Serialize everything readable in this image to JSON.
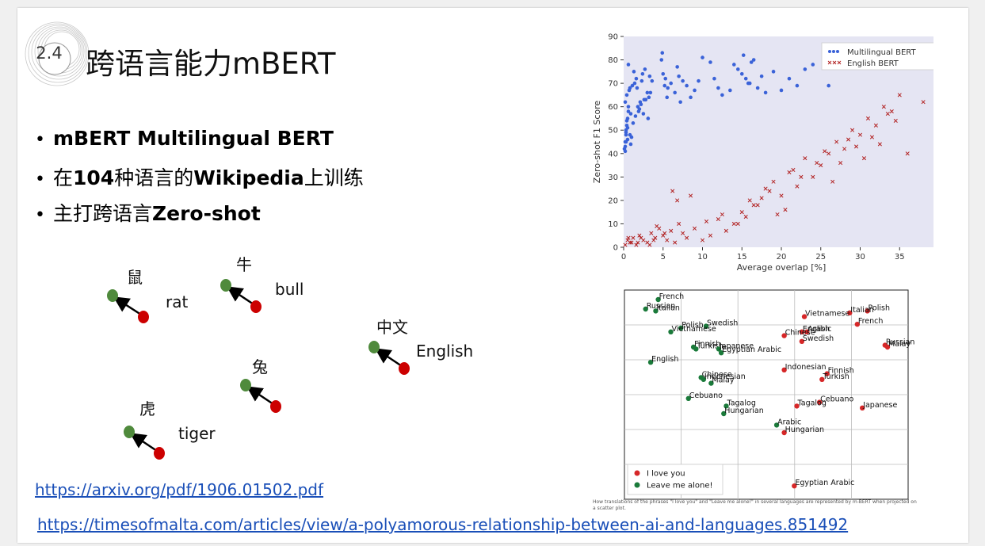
{
  "slide": {
    "section_number": "2.4",
    "title": "跨语言能力mBERT",
    "bullets": [
      {
        "bold_before": "mBERT Multilingual BERT",
        "text": "",
        "bold_after": ""
      },
      {
        "text_before": "在",
        "bold1": "104",
        "mid": "种语言的",
        "bold2": "Wikipedia",
        "after": "上训练"
      },
      {
        "text_before": "主打跨语言",
        "bold": "Zero-shot"
      }
    ],
    "links": [
      "https://arxiv.org/pdf/1906.01502.pdf",
      "https://timesofmalta.com/articles/view/a-polyamorous-relationship-between-ai-and-languages.851492"
    ]
  },
  "word_pairs": [
    {
      "zh": "鼠",
      "en": "rat"
    },
    {
      "zh": "牛",
      "en": "bull"
    },
    {
      "zh": "中文",
      "en": "English"
    },
    {
      "zh": "兔",
      "en": ""
    },
    {
      "zh": "虎",
      "en": "tiger"
    }
  ],
  "colors": {
    "green": "#4f8a3c",
    "red": "#cc0000",
    "blue": "#3a62d8",
    "xred": "#b22222",
    "chart_bg": "#e5e5f3"
  },
  "chart_data": [
    {
      "type": "scatter",
      "xlabel": "Average overlap [%]",
      "ylabel": "Zero-shot F1 Score",
      "xlim": [
        0,
        40
      ],
      "ylim": [
        0,
        90
      ],
      "xticks": [
        0,
        5,
        10,
        15,
        20,
        25,
        30,
        35,
        40
      ],
      "yticks": [
        0,
        10,
        20,
        30,
        40,
        50,
        60,
        70,
        80,
        90
      ],
      "legend": "top-right",
      "series": [
        {
          "name": "Multilingual BERT",
          "marker": "dot",
          "color": "#3a62d8",
          "x": [
            0.1,
            0.2,
            0.3,
            0.4,
            0.5,
            0.6,
            0.2,
            0.4,
            0.8,
            0.3,
            0.5,
            0.9,
            1.0,
            1.2,
            1.5,
            1.8,
            2.0,
            2.2,
            2.5,
            2.8,
            3.0,
            3.2,
            1.4,
            1.6,
            2.4,
            2.7,
            3.3,
            3.6,
            0.6,
            0.7,
            1.1,
            1.3,
            0.2,
            0.3,
            0.5,
            4.8,
            5.0,
            5.3,
            5.6,
            6.0,
            6.5,
            7.0,
            7.5,
            8.0,
            8.5,
            9.0,
            10.0,
            11.0,
            11.5,
            12.0,
            12.5,
            14.0,
            14.5,
            15.0,
            15.5,
            16.0,
            16.5,
            17.0,
            18.0,
            19.0,
            20.0,
            21.0,
            22.0,
            23.0,
            24.0,
            26.0,
            0.4,
            0.9,
            2.1,
            3.1,
            5.2,
            6.8,
            15.2,
            16.2,
            0.3,
            0.6,
            1.7,
            2.3,
            4.9,
            5.5,
            7.2,
            9.5,
            13.5,
            15.8,
            17.5,
            0.2,
            0.8,
            1.9,
            2.6,
            3.4
          ],
          "y": [
            42,
            45,
            48,
            52,
            55,
            58,
            62,
            65,
            68,
            50,
            46,
            44,
            47,
            53,
            56,
            60,
            59,
            61,
            57,
            63,
            66,
            64,
            70,
            72,
            74,
            76,
            73,
            71,
            78,
            67,
            69,
            75,
            43,
            49,
            51,
            80,
            74,
            72,
            68,
            70,
            66,
            73,
            71,
            69,
            64,
            67,
            81,
            79,
            72,
            68,
            65,
            78,
            76,
            74,
            72,
            70,
            80,
            68,
            66,
            75,
            67,
            72,
            69,
            76,
            78,
            69,
            54,
            57,
            62,
            55,
            69,
            77,
            82,
            79,
            45,
            60,
            68,
            71,
            83,
            64,
            62,
            71,
            67,
            70,
            73,
            41,
            48,
            58,
            63,
            66
          ]
        },
        {
          "name": "English BERT",
          "marker": "x",
          "color": "#b22222",
          "x": [
            0.2,
            0.5,
            0.8,
            1.2,
            1.6,
            2.0,
            2.5,
            3.0,
            3.5,
            4.0,
            4.5,
            5.0,
            5.5,
            6.0,
            6.5,
            7.0,
            7.5,
            8.0,
            9.0,
            10.0,
            11.0,
            12.0,
            13.0,
            14.0,
            15.0,
            16.0,
            17.0,
            18.0,
            19.0,
            20.0,
            21.0,
            22.0,
            23.0,
            24.0,
            25.0,
            26.0,
            27.0,
            28.0,
            29.0,
            30.0,
            31.0,
            32.0,
            33.0,
            34.0,
            35.0,
            38.0,
            1.0,
            2.2,
            3.8,
            5.2,
            6.8,
            8.5,
            10.5,
            12.5,
            14.5,
            16.5,
            18.5,
            20.5,
            22.5,
            24.5,
            26.5,
            28.5,
            30.5,
            32.5,
            34.5,
            4.2,
            6.2,
            3.3,
            1.8,
            0.6,
            15.5,
            17.5,
            19.5,
            21.5,
            25.5,
            27.5,
            29.5,
            31.5,
            33.5,
            36.0
          ],
          "y": [
            1,
            3,
            2,
            4,
            1,
            5,
            3,
            2,
            6,
            4,
            8,
            5,
            3,
            7,
            2,
            10,
            6,
            4,
            8,
            3,
            5,
            12,
            7,
            10,
            15,
            20,
            18,
            25,
            28,
            22,
            32,
            26,
            38,
            30,
            35,
            40,
            45,
            42,
            50,
            48,
            55,
            52,
            60,
            58,
            65,
            62,
            2,
            4,
            3,
            6,
            20,
            22,
            11,
            14,
            10,
            18,
            24,
            16,
            30,
            36,
            28,
            46,
            38,
            44,
            54,
            9,
            24,
            1,
            2,
            4,
            13,
            21,
            14,
            33,
            41,
            36,
            43,
            47,
            57,
            40
          ]
        }
      ]
    },
    {
      "type": "scatter",
      "xlabel": "",
      "ylabel": "",
      "legend": "bottom-left",
      "grid": true,
      "series": [
        {
          "name": "I love you",
          "color": "#d62728",
          "points": [
            {
              "label": "Polish",
              "x": 0.92,
              "y": 0.94
            },
            {
              "label": "Italian",
              "x": 0.85,
              "y": 0.93
            },
            {
              "label": "Vietnamese",
              "x": 0.67,
              "y": 0.91
            },
            {
              "label": "French",
              "x": 0.88,
              "y": 0.87
            },
            {
              "label": "English",
              "x": 0.66,
              "y": 0.83
            },
            {
              "label": "Arabic",
              "x": 0.68,
              "y": 0.83
            },
            {
              "label": "Chinese",
              "x": 0.59,
              "y": 0.81
            },
            {
              "label": "Swedish",
              "x": 0.66,
              "y": 0.78
            },
            {
              "label": "Russian",
              "x": 0.99,
              "y": 0.76
            },
            {
              "label": "Malay",
              "x": 1.0,
              "y": 0.75
            },
            {
              "label": "Indonesian",
              "x": 0.59,
              "y": 0.63
            },
            {
              "label": "Finnish",
              "x": 0.76,
              "y": 0.61
            },
            {
              "label": "Turkish",
              "x": 0.74,
              "y": 0.58
            },
            {
              "label": "Cebuano",
              "x": 0.73,
              "y": 0.46
            },
            {
              "label": "Tagalog",
              "x": 0.64,
              "y": 0.44
            },
            {
              "label": "Japanese",
              "x": 0.9,
              "y": 0.43
            },
            {
              "label": "Hungarian",
              "x": 0.59,
              "y": 0.3
            },
            {
              "label": "Egyptian Arabic",
              "x": 0.63,
              "y": 0.02
            }
          ]
        },
        {
          "name": "Leave me alone!",
          "color": "#1a7a3a",
          "points": [
            {
              "label": "French",
              "x": 0.09,
              "y": 1.0
            },
            {
              "label": "Russian",
              "x": 0.04,
              "y": 0.95
            },
            {
              "label": "Italian",
              "x": 0.08,
              "y": 0.94
            },
            {
              "label": "Swedish",
              "x": 0.28,
              "y": 0.86
            },
            {
              "label": "Polish",
              "x": 0.18,
              "y": 0.85
            },
            {
              "label": "Vietnamese",
              "x": 0.14,
              "y": 0.83
            },
            {
              "label": "Finnish",
              "x": 0.23,
              "y": 0.75
            },
            {
              "label": "Turkish",
              "x": 0.24,
              "y": 0.74
            },
            {
              "label": "Japanese",
              "x": 0.33,
              "y": 0.74
            },
            {
              "label": "Egyptian Arabic",
              "x": 0.34,
              "y": 0.72
            },
            {
              "label": "English",
              "x": 0.06,
              "y": 0.67
            },
            {
              "label": "Chinese",
              "x": 0.26,
              "y": 0.59
            },
            {
              "label": "Indonesian",
              "x": 0.27,
              "y": 0.58
            },
            {
              "label": "Malay",
              "x": 0.3,
              "y": 0.56
            },
            {
              "label": "Cebuano",
              "x": 0.21,
              "y": 0.48
            },
            {
              "label": "Tagalog",
              "x": 0.36,
              "y": 0.44
            },
            {
              "label": "Hungarian",
              "x": 0.35,
              "y": 0.4
            },
            {
              "label": "Arabic",
              "x": 0.56,
              "y": 0.34
            }
          ]
        }
      ]
    }
  ],
  "scatter_caption": "How translations of the phrases \"I love you\" and \"Leave me alone!\" in several languages are represented by m-BERT when projected on a scatter plot."
}
